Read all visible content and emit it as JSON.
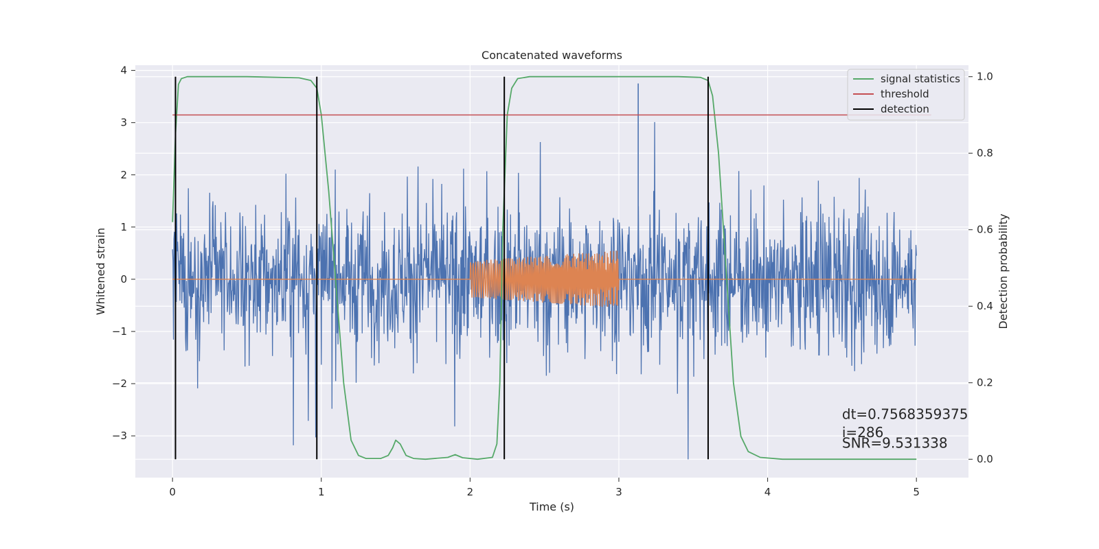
{
  "chart_data": {
    "type": "line",
    "title": "Concatenated waveforms",
    "xlabel": "Time (s)",
    "ylabel": "Whitened strain",
    "y2label": "Detection probability",
    "xlim": [
      -0.25,
      5.35
    ],
    "ylim": [
      -3.8,
      4.1
    ],
    "y2lim": [
      -0.048,
      1.03
    ],
    "x_ticks": [
      0,
      1,
      2,
      3,
      4,
      5
    ],
    "x_tick_labels": [
      "0",
      "1",
      "2",
      "3",
      "4",
      "5"
    ],
    "y_ticks": [
      -3,
      -2,
      -1,
      0,
      1,
      2,
      3,
      4
    ],
    "y_tick_labels": [
      "−3",
      "−2",
      "−1",
      "0",
      "1",
      "2",
      "3",
      "4"
    ],
    "y2_ticks": [
      0.0,
      0.2,
      0.4,
      0.6,
      0.8,
      1.0
    ],
    "y2_tick_labels": [
      "0.0",
      "0.2",
      "0.4",
      "0.6",
      "0.8",
      "1.0"
    ],
    "grid": true,
    "legend_position": "top-right",
    "colors": {
      "background": "#eaeaf2",
      "grid": "#ffffff",
      "strain": "#4c72b0",
      "template": "#dd8452",
      "signal_statistics": "#55a868",
      "threshold": "#c44e52",
      "detection": "#000000"
    },
    "series": [
      {
        "name": "",
        "axis": "left",
        "kind": "noise",
        "x_range": [
          0,
          5
        ],
        "approx_amplitude": 2.6,
        "peak_max": 3.75,
        "peak_min": -3.45
      },
      {
        "name": "",
        "axis": "left",
        "kind": "chirp",
        "x_range": [
          0,
          5
        ],
        "chirp_start": 2.0,
        "chirp_end": 3.0,
        "amplitude_start": 0.35,
        "amplitude_end": 0.55
      },
      {
        "name": "signal statistics",
        "axis": "right",
        "x": [
          0.0,
          0.02,
          0.04,
          0.06,
          0.1,
          0.2,
          0.5,
          0.85,
          0.93,
          0.97,
          1.0,
          1.05,
          1.1,
          1.15,
          1.2,
          1.25,
          1.3,
          1.4,
          1.45,
          1.48,
          1.5,
          1.53,
          1.57,
          1.62,
          1.7,
          1.85,
          1.9,
          1.95,
          2.05,
          2.15,
          2.18,
          2.2,
          2.22,
          2.25,
          2.28,
          2.32,
          2.4,
          2.6,
          3.4,
          3.55,
          3.6,
          3.63,
          3.67,
          3.72,
          3.77,
          3.82,
          3.87,
          3.95,
          4.1,
          5.0
        ],
        "y": [
          0.62,
          0.85,
          0.98,
          0.995,
          1.0,
          1.0,
          1.0,
          0.997,
          0.99,
          0.97,
          0.9,
          0.7,
          0.45,
          0.2,
          0.05,
          0.01,
          0.002,
          0.002,
          0.01,
          0.03,
          0.05,
          0.04,
          0.01,
          0.002,
          0.0,
          0.005,
          0.012,
          0.004,
          0.0,
          0.005,
          0.04,
          0.2,
          0.6,
          0.9,
          0.97,
          0.995,
          1.0,
          1.0,
          1.0,
          0.998,
          0.99,
          0.95,
          0.8,
          0.5,
          0.2,
          0.06,
          0.02,
          0.005,
          0.0,
          0.0
        ]
      },
      {
        "name": "threshold",
        "axis": "right",
        "x": [
          0.0,
          5.1
        ],
        "y": [
          0.9,
          0.9
        ]
      },
      {
        "name": "detection",
        "axis": "right",
        "kind": "vlines",
        "x": [
          0.02,
          0.97,
          2.23,
          3.6
        ],
        "y_range": [
          0.0,
          1.0
        ]
      }
    ],
    "annotations": [
      {
        "text": "dt=0.7568359375",
        "x": 4.5,
        "y2": 0.105
      },
      {
        "text": " i=286",
        "x": 4.5,
        "y2": 0.058
      },
      {
        "text": "SNR=9.531338",
        "x": 4.5,
        "y2": 0.03
      }
    ]
  }
}
